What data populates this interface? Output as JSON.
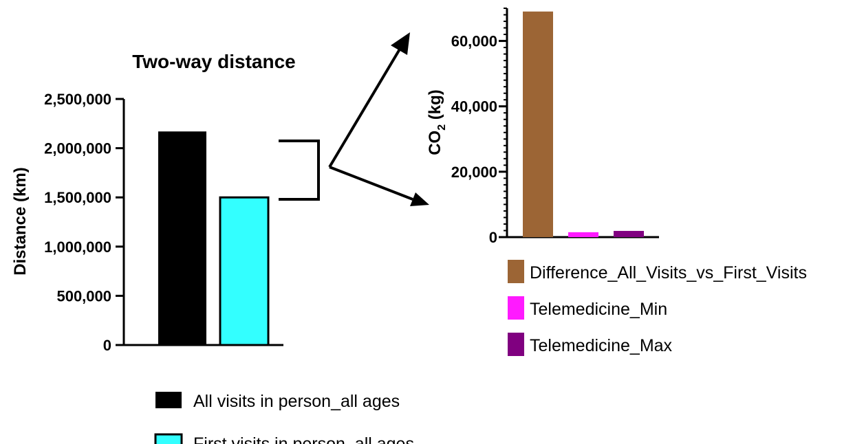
{
  "chart_data": [
    {
      "type": "bar",
      "title": "Two-way distance",
      "ylabel": "Distance (km)",
      "xlabel": "",
      "ylim": [
        0,
        2500000
      ],
      "yticks": [
        0,
        500000,
        1000000,
        1500000,
        2000000,
        2500000
      ],
      "ytick_labels": [
        "0",
        "500,000",
        "1,000,000",
        "1,500,000",
        "2,000,000",
        "2,500,000"
      ],
      "categories": [
        "All visits in person_all ages",
        "First visits in person_all ages"
      ],
      "values": [
        2170000,
        1500000
      ],
      "colors": [
        "#000000",
        "#33ffff"
      ],
      "grid": false,
      "legend": "bottom"
    },
    {
      "type": "bar",
      "title": "",
      "ylabel_main": "CO",
      "ylabel_sub": "2",
      "ylabel_unit": " (kg)",
      "xlabel": "",
      "ylim": [
        0,
        70000
      ],
      "yticks": [
        0,
        20000,
        40000,
        60000
      ],
      "ytick_labels": [
        "0",
        "20,000",
        "40,000",
        "60,000"
      ],
      "categories": [
        "Difference_All_Visits_vs_First_Visits",
        "Telemedicine_Min",
        "Telemedicine_Max"
      ],
      "values": [
        69000,
        1500,
        1900
      ],
      "colors": [
        "#9c6535",
        "#ff1aff",
        "#800080"
      ],
      "grid": false,
      "legend": "bottom"
    }
  ]
}
